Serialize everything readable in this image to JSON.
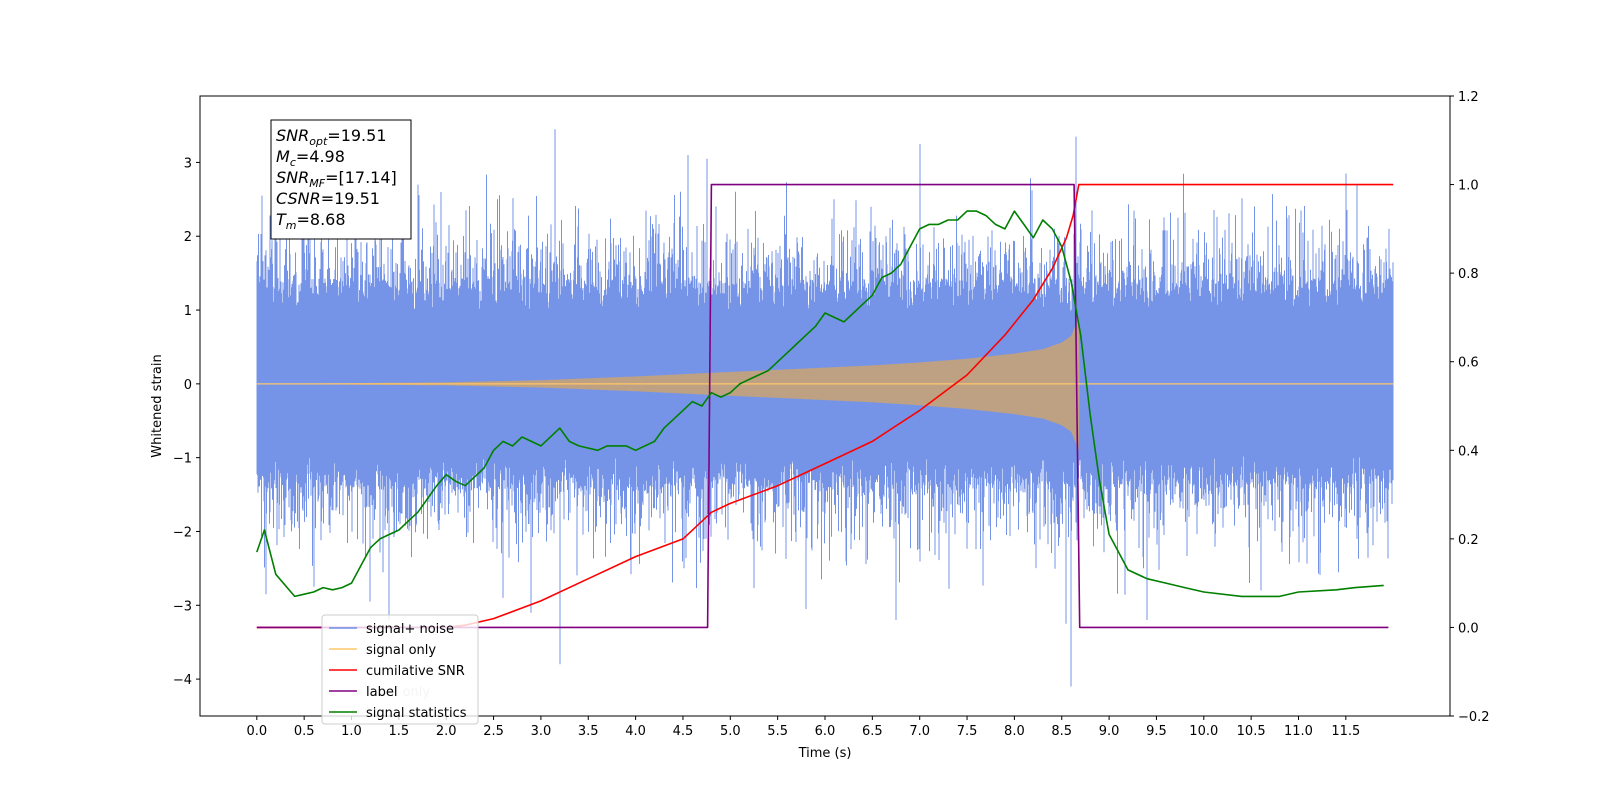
{
  "chart_data": {
    "type": "line",
    "title": "",
    "xlabel": "Time (s)",
    "ylabel": "Whitened strain",
    "xlim": [
      -0.6,
      12.6
    ],
    "ylim": [
      -4.5,
      3.9
    ],
    "y2lim": [
      -0.2,
      1.2
    ],
    "x_ticks": [
      "0.0",
      "0.5",
      "1.0",
      "1.5",
      "2.0",
      "2.5",
      "3.0",
      "3.5",
      "4.0",
      "4.5",
      "5.0",
      "5.5",
      "6.0",
      "6.5",
      "7.0",
      "7.5",
      "8.0",
      "8.5",
      "9.0",
      "9.5",
      "10.0",
      "10.5",
      "11.0",
      "11.5"
    ],
    "y_ticks": [
      "3",
      "2",
      "1",
      "0",
      "−1",
      "−2",
      "−3",
      "−4"
    ],
    "y2_ticks": [
      "1.2",
      "1.0",
      "0.8",
      "0.6",
      "0.4",
      "0.2",
      "0.0",
      "−0.2"
    ],
    "info_box": {
      "lines": [
        {
          "sym": "SNR",
          "sub": "opt",
          "value": "=19.51"
        },
        {
          "sym": "M",
          "sub": "c",
          "value": "=4.98"
        },
        {
          "sym": "SNR",
          "sub": "MF",
          "value": "=[17.14]"
        },
        {
          "sym": "CSNR",
          "sub": "",
          "value": "=19.51"
        },
        {
          "sym": "T",
          "sub": "m",
          "value": "=8.68"
        }
      ]
    },
    "legend": {
      "placement": "lower-left",
      "entries": [
        "signal+ noise",
        "signal only",
        "cumilative SNR",
        "label",
        "signal statistics"
      ],
      "hidden_entry": "label only"
    },
    "colors": {
      "noise": "#6f8ee6",
      "signal": "#ffc66b",
      "cumulative_snr": "#ff0000",
      "label": "#800080",
      "statistics": "#008000"
    },
    "series": [
      {
        "name": "signal+ noise",
        "axis": "left",
        "band": {
          "x_range": [
            0.0,
            12.0
          ],
          "base_amplitude": 1.3,
          "spikes": [
            {
              "x": 0.05,
              "y": 2.55
            },
            {
              "x": 0.1,
              "y": -2.85
            },
            {
              "x": 0.5,
              "y": 2.3
            },
            {
              "x": 0.6,
              "y": -2.75
            },
            {
              "x": 1.2,
              "y": -2.95
            },
            {
              "x": 1.4,
              "y": -3.2
            },
            {
              "x": 1.7,
              "y": 2.7
            },
            {
              "x": 1.95,
              "y": 2.6
            },
            {
              "x": 2.6,
              "y": -2.9
            },
            {
              "x": 2.9,
              "y": -3.1
            },
            {
              "x": 3.15,
              "y": 3.45
            },
            {
              "x": 3.2,
              "y": -3.8
            },
            {
              "x": 4.55,
              "y": 3.1
            },
            {
              "x": 4.75,
              "y": 3.05
            },
            {
              "x": 5.8,
              "y": -3.05
            },
            {
              "x": 6.75,
              "y": -3.2
            },
            {
              "x": 7.0,
              "y": 3.25
            },
            {
              "x": 8.55,
              "y": -3.25
            },
            {
              "x": 8.6,
              "y": -4.1
            },
            {
              "x": 8.65,
              "y": 3.35
            },
            {
              "x": 9.4,
              "y": -3.2
            },
            {
              "x": 10.6,
              "y": -2.8
            },
            {
              "x": 11.5,
              "y": 2.85
            }
          ]
        }
      },
      {
        "name": "signal only",
        "axis": "left",
        "envelope": {
          "x": [
            0.0,
            1.0,
            2.0,
            3.0,
            4.0,
            4.8,
            5.5,
            6.0,
            6.5,
            7.0,
            7.5,
            8.0,
            8.3,
            8.5,
            8.6,
            8.68,
            8.69,
            12.0
          ],
          "y": [
            0.0,
            0.01,
            0.02,
            0.05,
            0.1,
            0.15,
            0.19,
            0.22,
            0.25,
            0.29,
            0.34,
            0.41,
            0.47,
            0.56,
            0.65,
            0.9,
            0.0,
            0.0
          ]
        }
      },
      {
        "name": "cumilative SNR",
        "axis": "right",
        "x": [
          0.0,
          1.0,
          1.5,
          2.0,
          2.2,
          2.5,
          3.0,
          3.5,
          4.0,
          4.5,
          4.8,
          5.0,
          5.5,
          6.0,
          6.5,
          7.0,
          7.5,
          7.9,
          8.2,
          8.4,
          8.55,
          8.62,
          8.68,
          12.0
        ],
        "y": [
          0.0,
          0.0,
          0.0,
          0.0,
          0.005,
          0.02,
          0.06,
          0.11,
          0.16,
          0.2,
          0.26,
          0.28,
          0.32,
          0.37,
          0.42,
          0.49,
          0.57,
          0.66,
          0.74,
          0.81,
          0.88,
          0.93,
          1.0,
          1.0
        ]
      },
      {
        "name": "label",
        "axis": "right",
        "x": [
          0.0,
          4.76,
          4.8,
          8.63,
          8.69,
          11.95
        ],
        "y": [
          0.0,
          0.0,
          1.0,
          1.0,
          0.0,
          0.0
        ]
      },
      {
        "name": "signal statistics",
        "axis": "right",
        "x": [
          0.0,
          0.08,
          0.2,
          0.4,
          0.5,
          0.6,
          0.7,
          0.8,
          0.9,
          1.0,
          1.2,
          1.3,
          1.4,
          1.5,
          1.6,
          1.7,
          1.8,
          1.9,
          2.0,
          2.1,
          2.2,
          2.3,
          2.4,
          2.5,
          2.6,
          2.7,
          2.8,
          2.9,
          3.0,
          3.2,
          3.3,
          3.4,
          3.6,
          3.7,
          3.9,
          4.0,
          4.2,
          4.3,
          4.4,
          4.5,
          4.6,
          4.7,
          4.8,
          4.9,
          5.0,
          5.1,
          5.2,
          5.3,
          5.4,
          5.5,
          5.6,
          5.7,
          5.8,
          5.9,
          6.0,
          6.2,
          6.3,
          6.4,
          6.5,
          6.6,
          6.7,
          6.8,
          6.9,
          7.0,
          7.1,
          7.2,
          7.3,
          7.4,
          7.5,
          7.6,
          7.7,
          7.8,
          7.9,
          8.0,
          8.1,
          8.2,
          8.3,
          8.4,
          8.5,
          8.6,
          8.7,
          8.8,
          8.9,
          9.0,
          9.2,
          9.4,
          9.6,
          9.8,
          10.0,
          10.4,
          10.8,
          11.0,
          11.4,
          11.6,
          11.9
        ],
        "y": [
          0.17,
          0.22,
          0.12,
          0.07,
          0.075,
          0.08,
          0.09,
          0.085,
          0.09,
          0.1,
          0.18,
          0.2,
          0.21,
          0.22,
          0.24,
          0.26,
          0.29,
          0.32,
          0.345,
          0.33,
          0.32,
          0.34,
          0.36,
          0.4,
          0.42,
          0.41,
          0.43,
          0.42,
          0.41,
          0.45,
          0.42,
          0.41,
          0.4,
          0.41,
          0.41,
          0.4,
          0.42,
          0.45,
          0.47,
          0.49,
          0.51,
          0.5,
          0.53,
          0.52,
          0.53,
          0.55,
          0.56,
          0.57,
          0.58,
          0.6,
          0.62,
          0.64,
          0.66,
          0.68,
          0.71,
          0.69,
          0.71,
          0.73,
          0.75,
          0.79,
          0.8,
          0.82,
          0.86,
          0.9,
          0.91,
          0.91,
          0.92,
          0.92,
          0.94,
          0.94,
          0.93,
          0.91,
          0.9,
          0.94,
          0.91,
          0.88,
          0.92,
          0.9,
          0.86,
          0.78,
          0.66,
          0.48,
          0.33,
          0.21,
          0.13,
          0.11,
          0.1,
          0.09,
          0.08,
          0.07,
          0.07,
          0.08,
          0.085,
          0.09,
          0.095
        ]
      }
    ]
  }
}
